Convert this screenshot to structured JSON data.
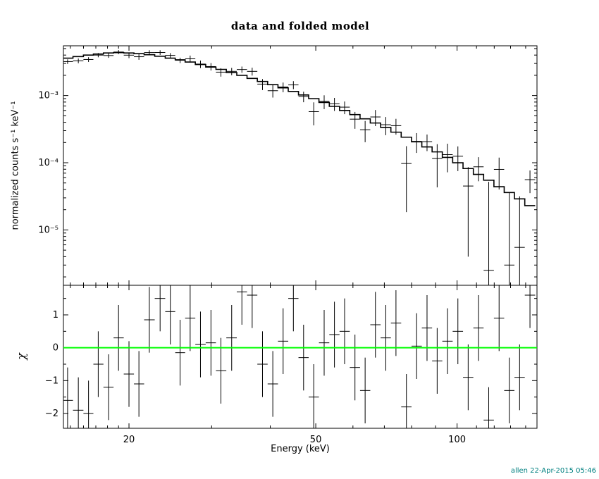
{
  "chart_data": {
    "title": "data and folded model",
    "xlabel": "Energy (keV)",
    "footer": "allen 22-Apr-2015 05:46",
    "colors": {
      "axes": "#000000",
      "data": "#000000",
      "model": "#000000",
      "zero_line": "#00ff00",
      "footer": "#008080",
      "background": "#ffffff"
    },
    "panels": [
      {
        "name": "spectrum",
        "type": "line",
        "ylabel": "normalized counts s⁻¹ keV⁻¹",
        "xscale": "log",
        "yscale": "log",
        "xlim": [
          14.5,
          148
        ],
        "ylim": [
          1.5e-06,
          0.0055
        ],
        "xticks": [
          20,
          50,
          100
        ],
        "xtick_labels": [
          "20",
          "50",
          "100"
        ],
        "yticks": [
          0.001,
          0.0001,
          1e-05
        ],
        "ytick_labels": [
          "10⁻³",
          "10⁻⁴",
          "10⁻⁵"
        ],
        "energy": [
          14.8,
          15.6,
          16.4,
          17.2,
          18.1,
          19.0,
          20.0,
          21.0,
          22.1,
          23.3,
          24.5,
          25.7,
          27.0,
          28.4,
          29.9,
          31.4,
          33.1,
          34.8,
          36.6,
          38.5,
          40.5,
          42.6,
          44.8,
          47.1,
          49.5,
          52.1,
          54.8,
          57.6,
          60.6,
          63.7,
          67.0,
          70.5,
          74.1,
          78.0,
          82.0,
          86.3,
          90.7,
          95.4,
          100.4,
          105.6,
          111.1,
          116.8,
          122.9,
          129.2,
          135.9,
          143.0
        ],
        "model": [
          0.0036,
          0.0038,
          0.004,
          0.00415,
          0.0043,
          0.00435,
          0.0043,
          0.0042,
          0.00405,
          0.00385,
          0.0036,
          0.0034,
          0.00315,
          0.0029,
          0.00265,
          0.00245,
          0.0022,
          0.002,
          0.0018,
          0.00162,
          0.00145,
          0.0013,
          0.00115,
          0.00102,
          0.0009,
          0.00079,
          0.00069,
          0.0006,
          0.00052,
          0.00045,
          0.00039,
          0.000335,
          0.000285,
          0.00024,
          0.000205,
          0.000172,
          0.000145,
          0.00012,
          0.0001,
          8.2e-05,
          6.7e-05,
          5.5e-05,
          4.4e-05,
          3.6e-05,
          2.9e-05,
          2.3e-05
        ],
        "data": [
          0.0032,
          0.00329,
          0.00344,
          0.004,
          0.00394,
          0.00444,
          0.00399,
          0.00378,
          0.00436,
          0.00437,
          0.00396,
          0.00335,
          0.00352,
          0.00294,
          0.0027,
          0.00223,
          0.00229,
          0.00244,
          0.00229,
          0.00148,
          0.00118,
          0.00134,
          0.00144,
          0.000968,
          0.000576,
          0.000818,
          0.000756,
          0.000672,
          0.000445,
          0.00031,
          0.00048,
          0.000368,
          0.000356,
          9.74e-05,
          0.000208,
          0.000206,
          0.000116,
          0.000132,
          0.000125,
          4.5e-05,
          8.7e-05,
          2.5e-06,
          7.96e-05,
          3e-06,
          5.5e-06,
          5.6e-05
        ],
        "err": [
          0.000252,
          0.000266,
          0.00028,
          0.00029,
          0.000301,
          0.000305,
          0.000387,
          0.000378,
          0.000365,
          0.000347,
          0.000324,
          0.000306,
          0.00041,
          0.000377,
          0.000345,
          0.000319,
          0.000286,
          0.00026,
          0.000306,
          0.000275,
          0.000247,
          0.000221,
          0.000196,
          0.000173,
          0.000216,
          0.00019,
          0.000166,
          0.000144,
          0.000125,
          0.000108,
          0.000129,
          0.000111,
          9.4e-05,
          7.9e-05,
          6.8e-05,
          5.7e-05,
          7.3e-05,
          6e-05,
          5e-05,
          4.1e-05,
          3.4e-05,
          4.95e-05,
          3.96e-05,
          3.24e-05,
          2.61e-05,
          2.07e-05
        ]
      },
      {
        "name": "residuals",
        "type": "scatter",
        "ylabel": "χ",
        "xscale": "log",
        "yscale": "linear",
        "ylim": [
          -2.45,
          1.9
        ],
        "yticks": [
          -2,
          -1,
          0,
          1
        ],
        "ytick_labels": [
          "−2",
          "−1",
          "0",
          "1"
        ],
        "chi": [
          -1.6,
          -1.9,
          -2.0,
          -0.5,
          -1.2,
          0.3,
          -0.8,
          -1.1,
          0.85,
          1.5,
          1.1,
          -0.15,
          0.9,
          0.1,
          0.15,
          -0.7,
          0.3,
          1.7,
          1.6,
          -0.5,
          -1.1,
          0.2,
          1.5,
          -0.3,
          -1.5,
          0.15,
          0.4,
          0.5,
          -0.6,
          -1.3,
          0.7,
          0.3,
          0.75,
          -1.8,
          0.05,
          0.6,
          -0.4,
          0.2,
          0.5,
          -0.9,
          0.6,
          -2.2,
          0.9,
          -1.3,
          -0.9,
          1.6
        ],
        "chi_err": 1,
        "zero_line_color": "#00ff00"
      }
    ]
  }
}
